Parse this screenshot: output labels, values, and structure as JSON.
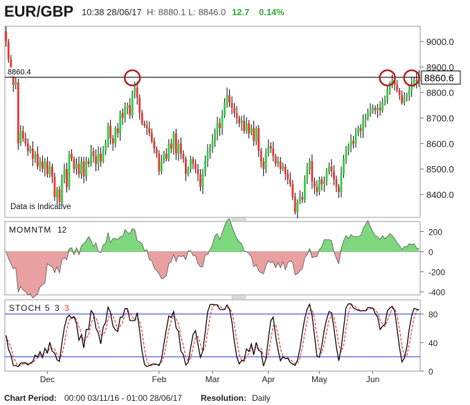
{
  "header": {
    "symbol": "EUR/GBP",
    "time": "10:38 28/06/17",
    "high": "H: 8880.1",
    "low": "L: 8846.0",
    "change": "12.7",
    "change_pct": "0.14%"
  },
  "colors": {
    "up": "#2ecc40",
    "down": "#e8342f",
    "wick": "#000000",
    "mom_pos_fill": "#7ed87e",
    "mom_neg_fill": "#e8a0a0",
    "stoch_k": "#000000",
    "stoch_d": "#e8342f",
    "stoch_levels": "#3333cc",
    "circle": "#b02020"
  },
  "chart_data": [
    {
      "type": "candlestick",
      "title": "EUR/GBP",
      "ylim": [
        8310,
        9060
      ],
      "yticks": [
        "9000.0",
        "8900.0",
        "8800.0",
        "8700.0",
        "8600.0",
        "8500.0",
        "8400.0"
      ],
      "ytick_values": [
        9000,
        8900,
        8800,
        8700,
        8600,
        8500,
        8400
      ],
      "xticks": [
        "Dec",
        "Feb",
        "Mar",
        "Apr",
        "May",
        "Jun"
      ],
      "xtick_index": [
        17,
        63,
        85,
        108,
        129,
        151
      ],
      "resistance_level": 8860.4,
      "resistance_label": "8860.4",
      "last_price_label": "8860.6",
      "note": "Data is Indicative",
      "highlighted_candles": [
        52,
        157,
        167
      ],
      "close": [
        9000,
        8930,
        8880,
        8830,
        8840,
        8600,
        8650,
        8620,
        8600,
        8570,
        8580,
        8540,
        8560,
        8510,
        8530,
        8500,
        8530,
        8480,
        8510,
        8470,
        8390,
        8420,
        8370,
        8460,
        8500,
        8430,
        8560,
        8540,
        8500,
        8520,
        8480,
        8530,
        8470,
        8530,
        8520,
        8570,
        8550,
        8520,
        8560,
        8530,
        8570,
        8600,
        8670,
        8620,
        8600,
        8660,
        8640,
        8720,
        8700,
        8740,
        8750,
        8710,
        8800,
        8820,
        8780,
        8720,
        8680,
        8670,
        8660,
        8640,
        8610,
        8580,
        8560,
        8490,
        8530,
        8560,
        8540,
        8600,
        8580,
        8640,
        8560,
        8600,
        8560,
        8540,
        8480,
        8500,
        8540,
        8520,
        8500,
        8480,
        8430,
        8490,
        8530,
        8570,
        8580,
        8610,
        8640,
        8680,
        8660,
        8710,
        8760,
        8790,
        8760,
        8740,
        8720,
        8700,
        8680,
        8690,
        8650,
        8680,
        8640,
        8660,
        8610,
        8660,
        8570,
        8530,
        8500,
        8560,
        8590,
        8580,
        8550,
        8520,
        8530,
        8500,
        8510,
        8480,
        8460,
        8440,
        8390,
        8330,
        8370,
        8390,
        8380,
        8460,
        8500,
        8530,
        8450,
        8430,
        8410,
        8460,
        8440,
        8450,
        8490,
        8510,
        8490,
        8460,
        8430,
        8410,
        8480,
        8540,
        8570,
        8590,
        8610,
        8600,
        8640,
        8660,
        8650,
        8690,
        8700,
        8720,
        8730,
        8740,
        8730,
        8740,
        8730,
        8760,
        8770,
        8810,
        8830,
        8850,
        8830,
        8810,
        8790,
        8760,
        8780,
        8790,
        8810,
        8830,
        8850,
        8846,
        8861
      ]
    },
    {
      "type": "area",
      "title": "MOMNTM",
      "param": "12",
      "ylim": [
        -430,
        300
      ],
      "yticks": [
        "200",
        "0",
        "-200",
        "-400"
      ],
      "ytick_values": [
        200,
        0,
        -200,
        -400
      ]
    },
    {
      "type": "line",
      "title": "STOCH",
      "params": [
        "5",
        "3",
        "3"
      ],
      "ylim": [
        0,
        100
      ],
      "levels": [
        80,
        20
      ],
      "yticks": [
        "80",
        "40",
        "0"
      ],
      "ytick_values": [
        80,
        40,
        0
      ]
    }
  ],
  "footer": {
    "period_label": "Chart Period:",
    "period_value": "00:00 03/11/16 - 01:00 28/06/17",
    "resolution_label": "Resolution:",
    "resolution_value": "Daily"
  }
}
